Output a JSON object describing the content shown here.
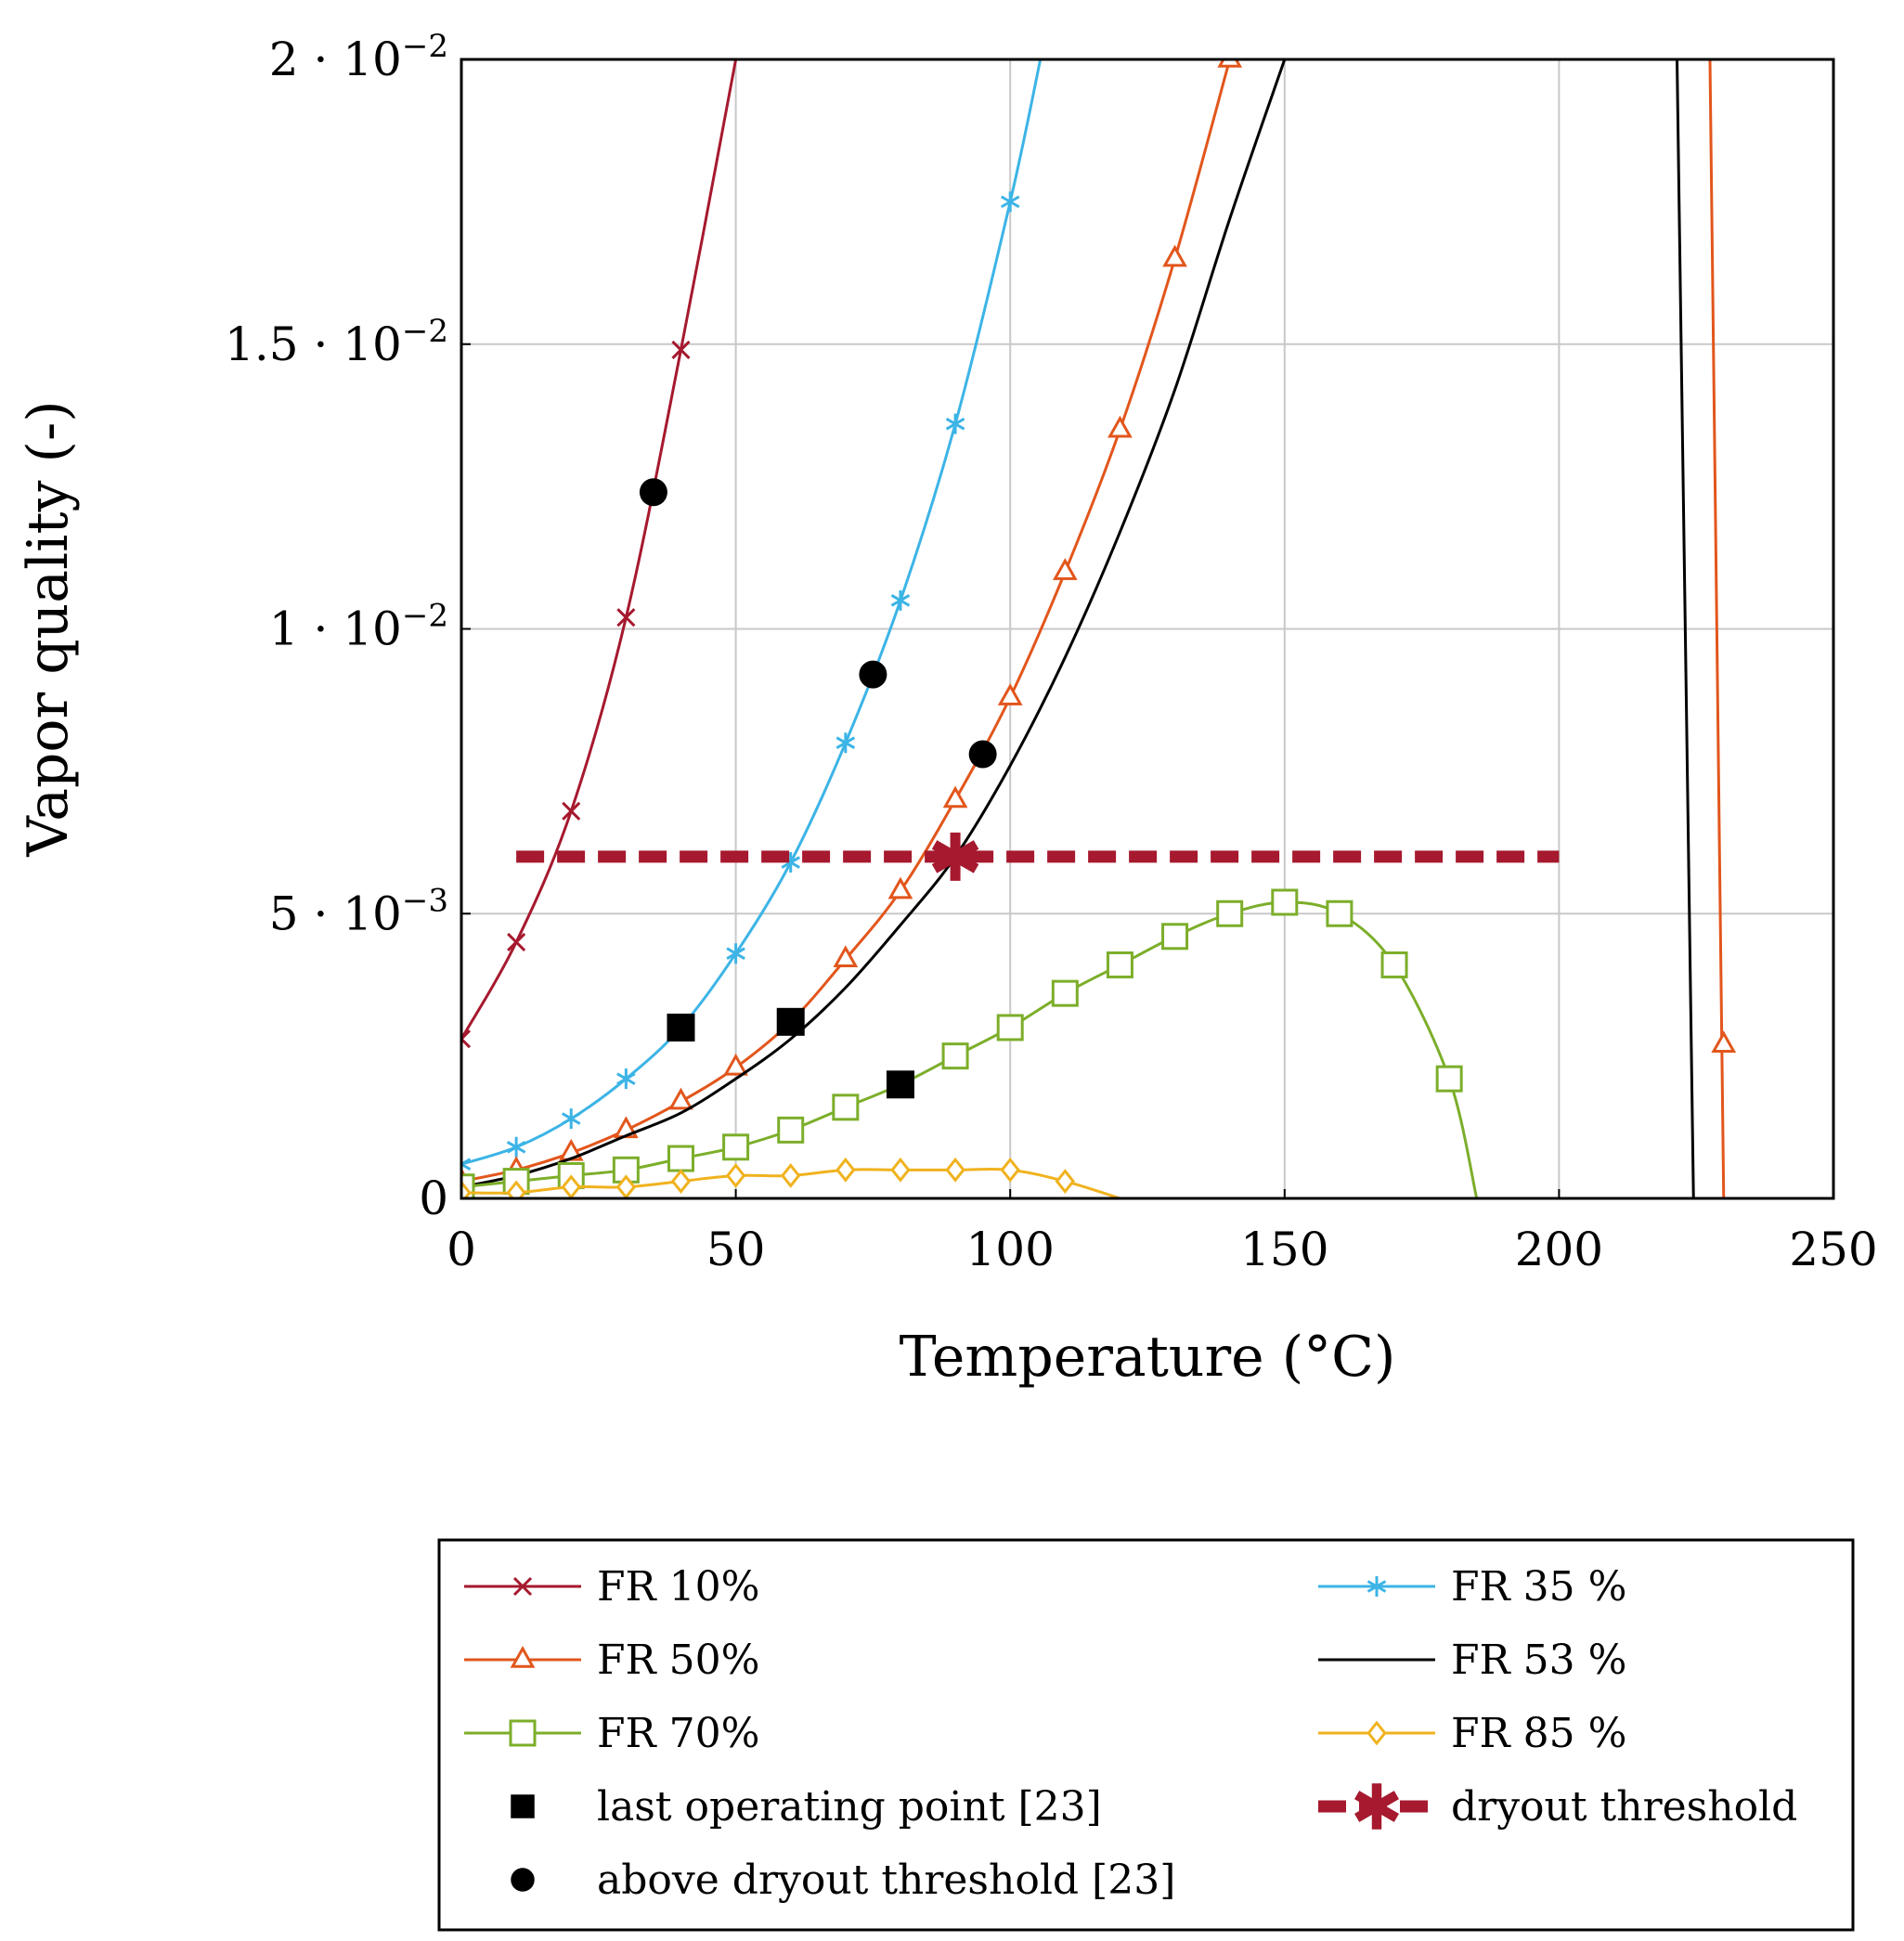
{
  "chart_data": {
    "type": "line",
    "title": "",
    "xlabel": "Temperature (°C)",
    "ylabel": "Vapor quality (-)",
    "xlim": [
      0,
      250
    ],
    "ylim": [
      0,
      0.02
    ],
    "grid": true,
    "x_ticks": [
      {
        "value": 0,
        "label": "0"
      },
      {
        "value": 50,
        "label": "50"
      },
      {
        "value": 100,
        "label": "100"
      },
      {
        "value": 150,
        "label": "150"
      },
      {
        "value": 200,
        "label": "200"
      },
      {
        "value": 250,
        "label": "250"
      }
    ],
    "y_ticks": [
      {
        "value": 0,
        "label": "0",
        "exp": ""
      },
      {
        "value": 0.005,
        "label": "5 · 10",
        "exp": "−3"
      },
      {
        "value": 0.01,
        "label": "1 · 10",
        "exp": "−2"
      },
      {
        "value": 0.015,
        "label": "1.5 · 10",
        "exp": "−2"
      },
      {
        "value": 0.02,
        "label": "2 · 10",
        "exp": "−2"
      }
    ],
    "legend_position": "below",
    "series": [
      {
        "name": "FR 10%",
        "color": "#a6192e",
        "marker": "x",
        "x": [
          0,
          10,
          20,
          30,
          40,
          50
        ],
        "y": [
          0.0028,
          0.0045,
          0.0068,
          0.0102,
          0.0149,
          0.02
        ],
        "markers_x": [
          0,
          10,
          20,
          30,
          40
        ]
      },
      {
        "name": "FR 35 %",
        "color": "#3cb4e6",
        "marker": "asterisk",
        "x": [
          0,
          10,
          20,
          30,
          40,
          50,
          60,
          70,
          80,
          90,
          100,
          105.5
        ],
        "y": [
          0.0006,
          0.0009,
          0.0014,
          0.0021,
          0.003,
          0.0043,
          0.0059,
          0.008,
          0.0105,
          0.0136,
          0.0175,
          0.02
        ],
        "markers_x": [
          0,
          10,
          20,
          30,
          40,
          50,
          60,
          70,
          80,
          90,
          100
        ]
      },
      {
        "name": "FR 50%",
        "color": "#e2561c",
        "marker": "triangle",
        "x": [
          0,
          10,
          20,
          30,
          40,
          50,
          60,
          70,
          80,
          90,
          100,
          110,
          120,
          130,
          140
        ],
        "y": [
          0.0003,
          0.0005,
          0.0008,
          0.0012,
          0.0017,
          0.0023,
          0.0031,
          0.0042,
          0.0054,
          0.007,
          0.0088,
          0.011,
          0.0135,
          0.0165,
          0.02
        ],
        "markers_x": [
          0,
          10,
          20,
          30,
          40,
          50,
          60,
          70,
          80,
          90,
          100,
          110,
          120,
          130,
          140
        ],
        "x2": [
          227.5,
          230
        ],
        "y2": [
          0.02,
          0.0
        ],
        "markers2": [
          {
            "x": 230,
            "y": 0.0027
          }
        ]
      },
      {
        "name": "FR 53 %",
        "color": "#000000",
        "marker": "none",
        "x": [
          0,
          10,
          20,
          30,
          40,
          50,
          60,
          70,
          80,
          90,
          100,
          110,
          120,
          130,
          140,
          150
        ],
        "y": [
          0.0002,
          0.0004,
          0.0007,
          0.0011,
          0.0015,
          0.0021,
          0.0028,
          0.0037,
          0.0048,
          0.006,
          0.0076,
          0.0095,
          0.0117,
          0.0142,
          0.0172,
          0.02
        ],
        "x2": [
          221.5,
          224.5
        ],
        "y2": [
          0.02,
          0.0
        ]
      },
      {
        "name": "FR 70%",
        "color": "#7cae2a",
        "marker": "square",
        "x": [
          0,
          10,
          20,
          30,
          40,
          50,
          60,
          70,
          80,
          90,
          100,
          110,
          120,
          130,
          140,
          150,
          160,
          170,
          180,
          185
        ],
        "y": [
          0.0002,
          0.0003,
          0.0004,
          0.0005,
          0.0007,
          0.0009,
          0.0012,
          0.0016,
          0.002,
          0.0025,
          0.003,
          0.0036,
          0.0041,
          0.0046,
          0.005,
          0.0052,
          0.005,
          0.0041,
          0.0021,
          0.0
        ],
        "markers_x": [
          0,
          10,
          20,
          30,
          40,
          50,
          60,
          70,
          80,
          90,
          100,
          110,
          120,
          130,
          140,
          150,
          160,
          170,
          180
        ]
      },
      {
        "name": "FR 85 %",
        "color": "#f0b21e",
        "marker": "diamond",
        "x": [
          0,
          10,
          20,
          30,
          40,
          50,
          60,
          70,
          80,
          90,
          100,
          110,
          120
        ],
        "y": [
          0.0001,
          0.0001,
          0.0002,
          0.0002,
          0.0003,
          0.0004,
          0.0004,
          0.0005,
          0.0005,
          0.0005,
          0.0005,
          0.0003,
          0.0
        ],
        "markers_x": [
          0,
          10,
          20,
          30,
          40,
          50,
          60,
          70,
          80,
          90,
          100,
          110
        ]
      }
    ],
    "point_sets": [
      {
        "name": "last operating point [23]",
        "marker": "filled-square",
        "color": "#000000",
        "points": [
          {
            "x": 40,
            "y": 0.003
          },
          {
            "x": 60,
            "y": 0.0031
          },
          {
            "x": 80,
            "y": 0.002
          }
        ]
      },
      {
        "name": "above dryout threshold [23]",
        "marker": "filled-circle",
        "color": "#000000",
        "points": [
          {
            "x": 35,
            "y": 0.0124
          },
          {
            "x": 75,
            "y": 0.0092
          },
          {
            "x": 95,
            "y": 0.0078
          }
        ]
      }
    ],
    "threshold": {
      "name": "dryout threshold",
      "color": "#a6192e",
      "x": [
        10,
        200
      ],
      "y": 0.006,
      "star": {
        "x": 90,
        "y": 0.006
      }
    },
    "legend": [
      {
        "label": "FR 10%",
        "ref": "FR 10%"
      },
      {
        "label": "FR 35 %",
        "ref": "FR 35 %"
      },
      {
        "label": "FR 50%",
        "ref": "FR 50%"
      },
      {
        "label": "FR 53 %",
        "ref": "FR 53 %"
      },
      {
        "label": "FR 70%",
        "ref": "FR 70%"
      },
      {
        "label": "FR 85 %",
        "ref": "FR 85 %"
      },
      {
        "label": "last operating point [23]",
        "ref": "last operating point [23]"
      },
      {
        "label": "dryout threshold",
        "ref": "dryout threshold"
      },
      {
        "label": "above dryout threshold [23]",
        "ref": "above dryout threshold [23]"
      }
    ]
  }
}
